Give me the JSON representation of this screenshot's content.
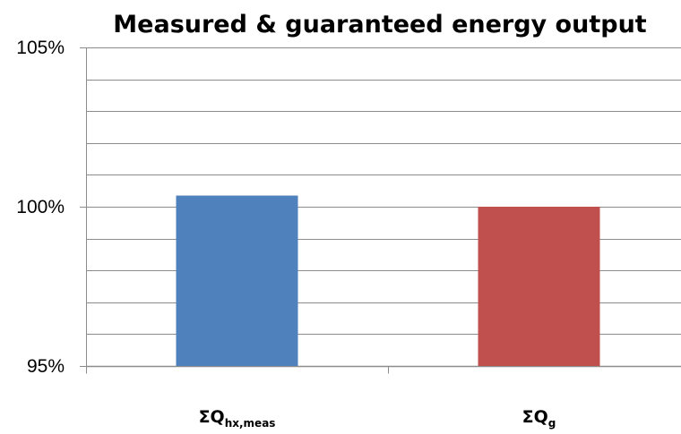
{
  "chart_data": {
    "type": "bar",
    "title": "Measured & guaranteed energy output",
    "xlabel": "",
    "ylabel": "",
    "ylim": [
      95,
      105
    ],
    "yticks": [
      95,
      100,
      105
    ],
    "ytick_labels": [
      "95%",
      "100%",
      "105%"
    ],
    "minor_grid_step": 1,
    "grid": true,
    "legend": "none",
    "categories": [
      {
        "main": "ΣQ",
        "sub": "hx,meas"
      },
      {
        "main": "ΣQ",
        "sub": "g"
      }
    ],
    "values": [
      100.35,
      100.0
    ],
    "colors": [
      "#4f81bd",
      "#c0504d"
    ],
    "grid_color": "#8c8c8c",
    "axis_color": "#8c8c8c"
  }
}
